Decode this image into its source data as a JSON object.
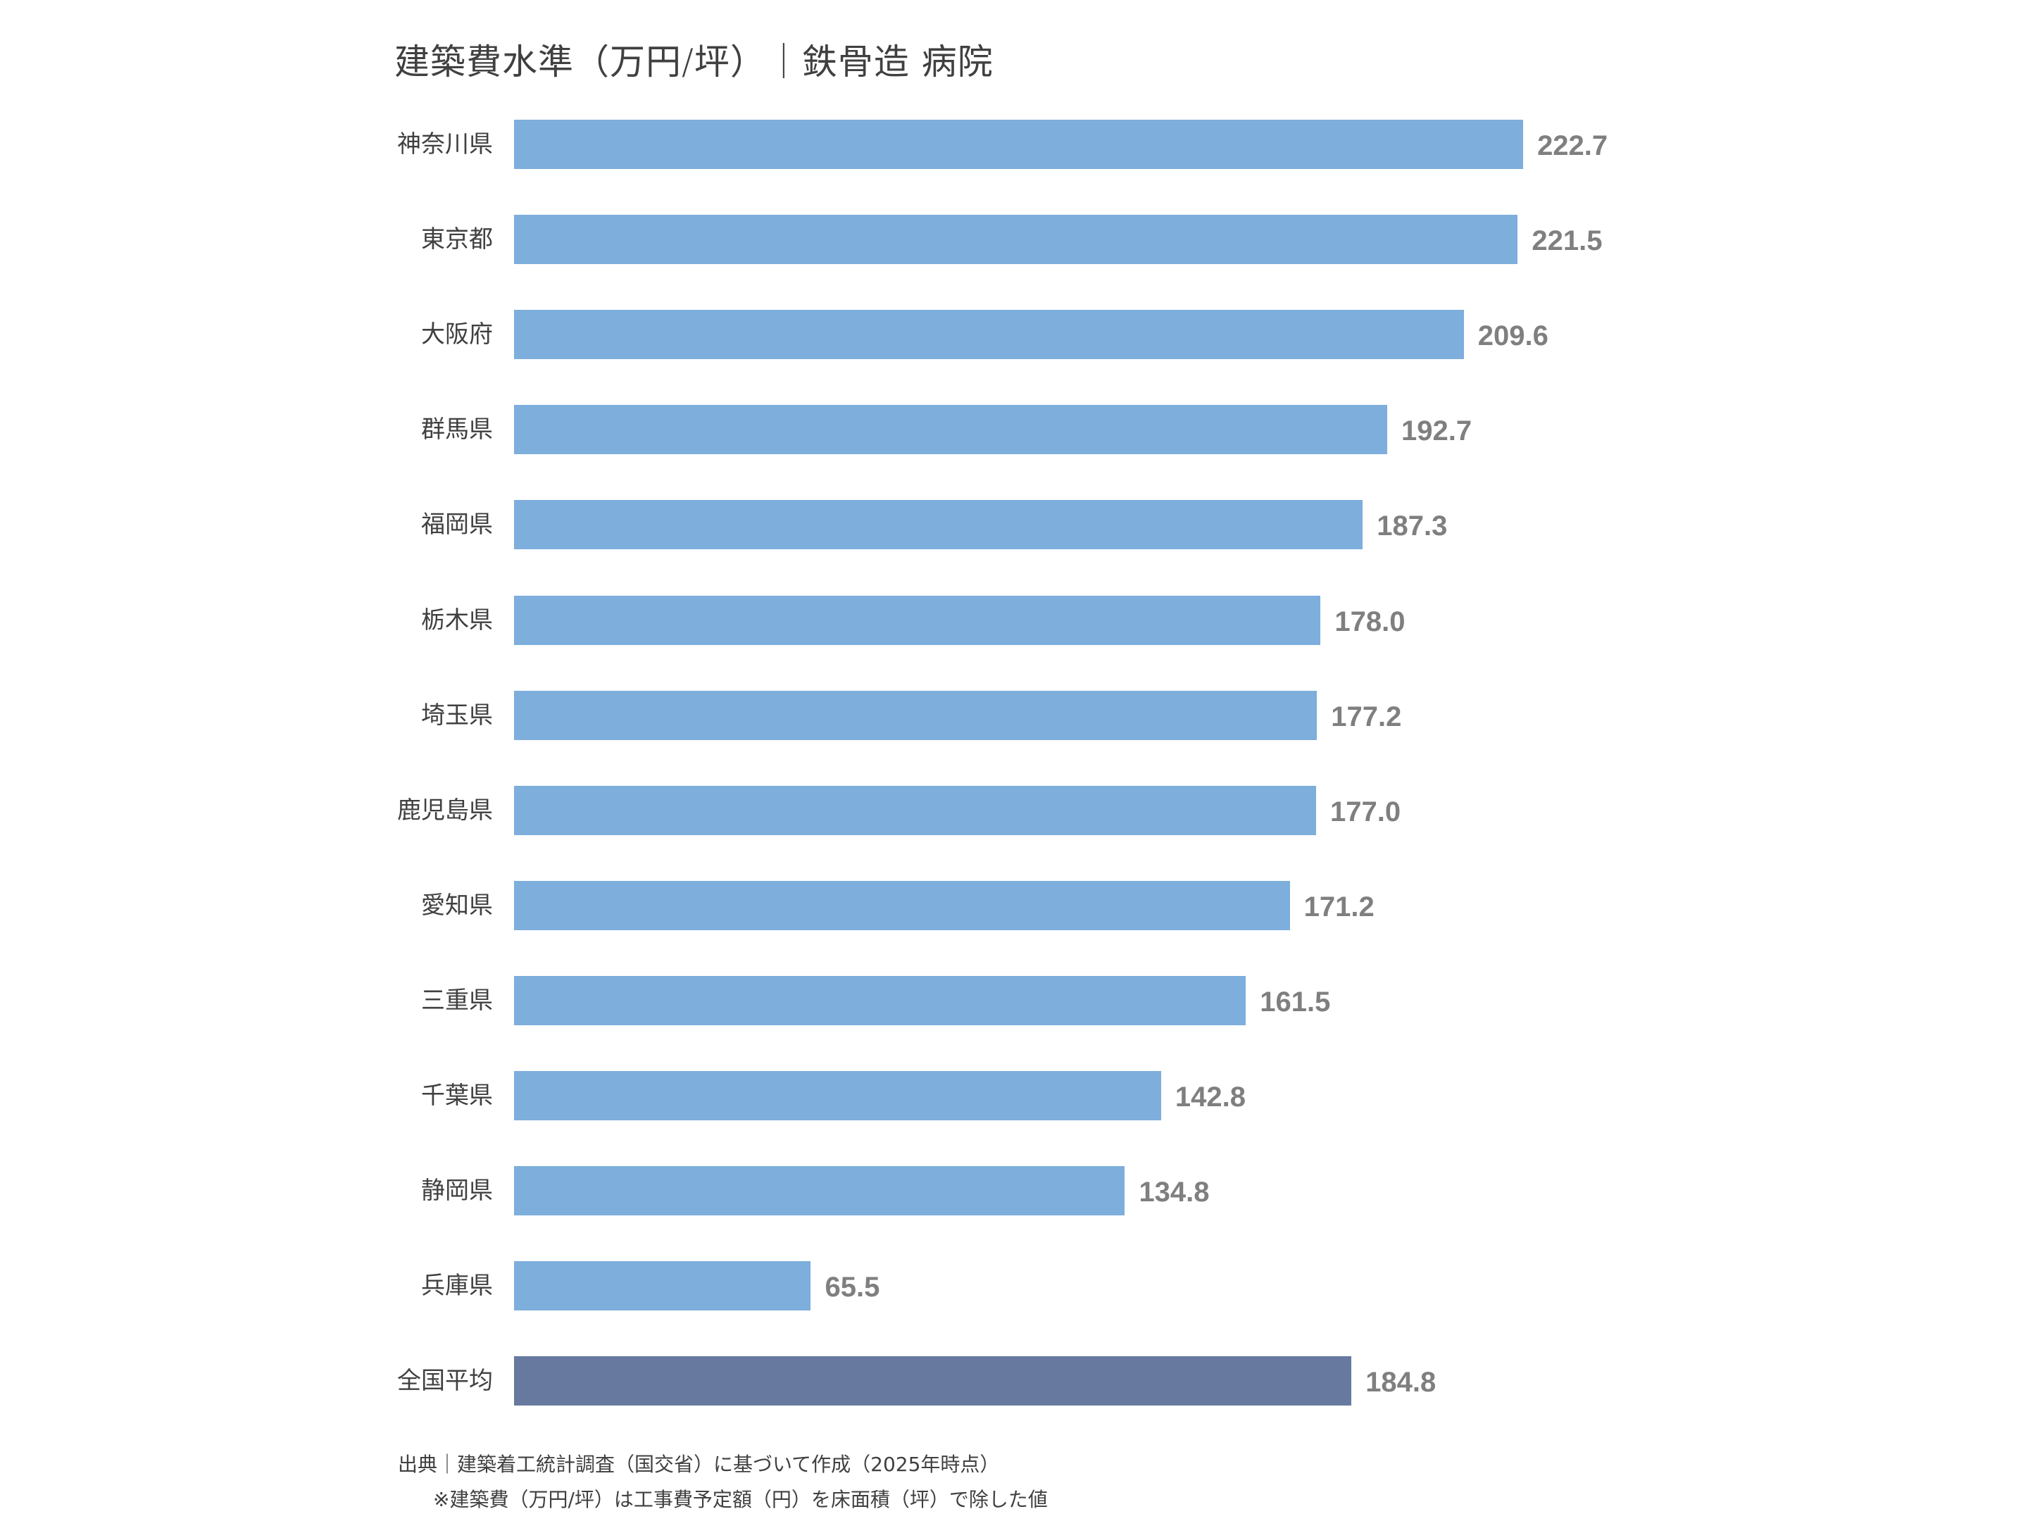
{
  "title": "建築費水準（万円/坪）｜鉄骨造 病院",
  "footnotes": {
    "source": "出典｜建築着工統計調査（国交省）に基づいて作成（2025年時点）",
    "note": "※建築費（万円/坪）は工事費予定額（円）を床面積（坪）で除した値"
  },
  "colors": {
    "bar": "#7daedc",
    "average_bar": "#67799f",
    "value_label": "#7f7f7f",
    "text": "#404040"
  },
  "chart_data": {
    "type": "bar",
    "orientation": "horizontal",
    "title": "建築費水準（万円/坪）｜鉄骨造 病院",
    "xlabel": "",
    "ylabel": "",
    "categories": [
      "神奈川県",
      "東京都",
      "大阪府",
      "群馬県",
      "福岡県",
      "栃木県",
      "埼玉県",
      "鹿児島県",
      "愛知県",
      "三重県",
      "千葉県",
      "静岡県",
      "兵庫県",
      "全国平均"
    ],
    "values": [
      222.7,
      221.5,
      209.6,
      192.7,
      187.3,
      178.0,
      177.2,
      177.0,
      171.2,
      161.5,
      142.8,
      134.8,
      65.5,
      184.8
    ],
    "value_labels": [
      "222.7",
      "221.5",
      "209.6",
      "192.7",
      "187.3",
      "178.0",
      "177.2",
      "177.0",
      "171.2",
      "161.5",
      "142.8",
      "134.8",
      "65.5",
      "184.8"
    ],
    "highlight": "全国平均",
    "grid": false,
    "legend": null,
    "xlim": [
      0,
      230
    ]
  }
}
